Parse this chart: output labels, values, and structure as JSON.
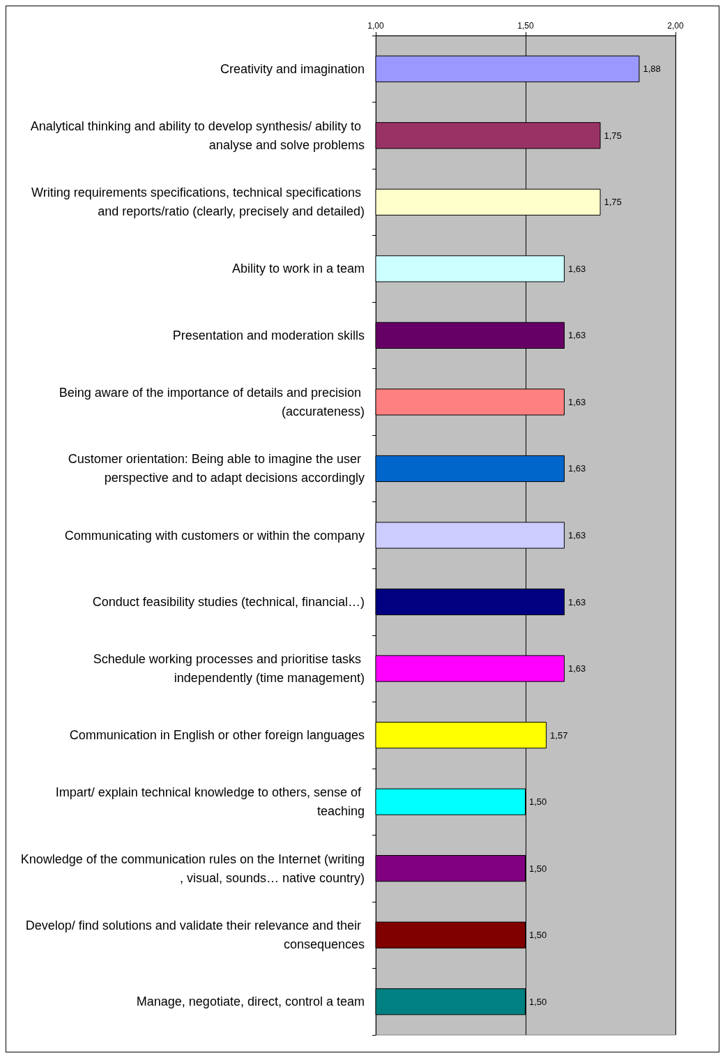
{
  "chart_data": {
    "type": "bar",
    "orientation": "horizontal",
    "categories": [
      "Creativity and imagination",
      "Analytical thinking and ability to develop synthesis/ ability to analyse and solve problems",
      "Writing requirements specifications, technical specifications and reports/ratio (clearly, precisely and detailed)",
      "Ability to work in a team",
      "Presentation and moderation skills",
      "Being aware of the importance of details and precision (accurateness)",
      "Customer orientation: Being able to imagine the user perspective and to adapt decisions accordingly",
      "Communicating with customers or within the company",
      "Conduct feasibility studies (technical, financial…)",
      "Schedule working processes and prioritise tasks independently (time management)",
      "Communication in English or other foreign languages",
      "Impart/ explain technical knowledge to others, sense of teaching",
      "Knowledge of the communication rules on the Internet (writing, visual, sounds… native country)",
      "Develop/ find solutions and validate their relevance and their consequences",
      "Manage, negotiate, direct, control a team"
    ],
    "values": [
      1.88,
      1.75,
      1.75,
      1.63,
      1.63,
      1.63,
      1.63,
      1.63,
      1.63,
      1.63,
      1.57,
      1.5,
      1.5,
      1.5,
      1.5
    ],
    "value_labels": [
      "1,88",
      "1,75",
      "1,75",
      "1,63",
      "1,63",
      "1,63",
      "1,63",
      "1,63",
      "1,63",
      "1,63",
      "1,57",
      "1,50",
      "1,50",
      "1,50",
      "1,50"
    ],
    "colors": [
      "#9999ff",
      "#993366",
      "#ffffcc",
      "#ccffff",
      "#660066",
      "#ff8080",
      "#0066cc",
      "#ccccff",
      "#000080",
      "#ff00ff",
      "#ffff00",
      "#00ffff",
      "#800080",
      "#800000",
      "#008080"
    ],
    "xlim": [
      1,
      2
    ],
    "xticks": [
      {
        "value": 1,
        "label": "1,00"
      },
      {
        "value": 1.5,
        "label": "1,50"
      },
      {
        "value": 2,
        "label": "2,00"
      }
    ],
    "grid": "x"
  }
}
